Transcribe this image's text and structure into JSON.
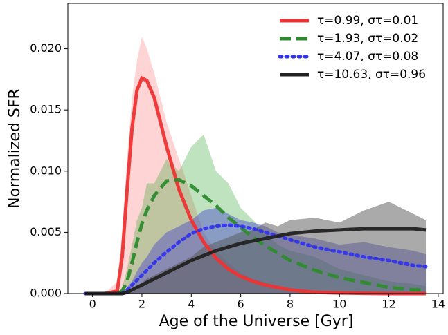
{
  "chart_data": {
    "type": "line",
    "xlabel": "Age of the Universe [Gyr]",
    "ylabel": "Normalized SFR",
    "xlim": [
      -1.0,
      14.2
    ],
    "ylim": [
      0,
      0.0237
    ],
    "xticks": [
      0,
      2,
      4,
      6,
      8,
      10,
      12,
      14
    ],
    "yticks": [
      {
        "value": 0,
        "label": "0.000"
      },
      {
        "value": 0.005,
        "label": "0.005"
      },
      {
        "value": 0.01,
        "label": "0.010"
      },
      {
        "value": 0.015,
        "label": "0.015"
      },
      {
        "value": 0.02,
        "label": "0.020"
      }
    ],
    "legend": "upper right",
    "x": [
      -0.3,
      0.5,
      1.0,
      1.2,
      1.4,
      1.6,
      1.8,
      2.0,
      2.2,
      2.5,
      3,
      3.5,
      4,
      4.5,
      5,
      5.5,
      6,
      6.5,
      7,
      7.5,
      8,
      9,
      10,
      11,
      12,
      13,
      13.5
    ],
    "fills": [
      {
        "color": "#ffb0b0",
        "opacity": 0.55,
        "values": [
          0,
          0,
          0.001,
          0.005,
          0.011,
          0.016,
          0.019,
          0.021,
          0.02,
          0.018,
          0.014,
          0.011,
          0.008,
          0.005,
          0.0035,
          0.0025,
          0.0017,
          0.0012,
          0.0009,
          0.0006,
          0.0004,
          0.0002,
          0.0001,
          0,
          0,
          0,
          0
        ]
      },
      {
        "color": "#2ca02c",
        "opacity": 0.3,
        "values": [
          0,
          0,
          0,
          0.0005,
          0.002,
          0.004,
          0.006,
          0.007,
          0.009,
          0.009,
          0.011,
          0.01,
          0.012,
          0.013,
          0.01,
          0.009,
          0.007,
          0.006,
          0.005,
          0.004,
          0.0035,
          0.003,
          0.002,
          0.0015,
          0.001,
          0.0008,
          0.0006
        ]
      },
      {
        "color": "#4848c8",
        "opacity": 0.45,
        "values": [
          0,
          0,
          0,
          0,
          0.0005,
          0.001,
          0.0018,
          0.0025,
          0.003,
          0.004,
          0.005,
          0.0055,
          0.006,
          0.0068,
          0.007,
          0.0065,
          0.006,
          0.0058,
          0.0055,
          0.005,
          0.0048,
          0.0045,
          0.004,
          0.0042,
          0.0038,
          0.0035,
          0.0032
        ]
      },
      {
        "color": "#555555",
        "opacity": 0.5,
        "values": [
          0,
          0,
          0,
          0,
          0,
          0.0003,
          0.0006,
          0.0009,
          0.0012,
          0.0015,
          0.002,
          0.0025,
          0.003,
          0.0038,
          0.0042,
          0.0046,
          0.005,
          0.0052,
          0.0058,
          0.0055,
          0.006,
          0.0062,
          0.0058,
          0.0068,
          0.0075,
          0.0065,
          0.006
        ]
      }
    ],
    "series": [
      {
        "name": "τ=0.99, στ=0.01",
        "color": "#ee3333",
        "dash": "solid",
        "values": [
          0,
          0,
          0.0002,
          0.003,
          0.0085,
          0.0135,
          0.0166,
          0.0176,
          0.0174,
          0.016,
          0.012,
          0.0085,
          0.006,
          0.0042,
          0.0029,
          0.002,
          0.0014,
          0.001,
          0.0007,
          0.0005,
          0.0003,
          0.0001,
          5e-05,
          2e-05,
          0,
          0,
          0
        ]
      },
      {
        "name": "τ=1.93, στ=0.02",
        "color": "#2e8b2e",
        "dash": "dashed",
        "values": [
          0,
          0,
          0,
          0.0002,
          0.001,
          0.0025,
          0.0042,
          0.0057,
          0.0068,
          0.008,
          0.0092,
          0.0093,
          0.0088,
          0.008,
          0.0072,
          0.0062,
          0.0054,
          0.0046,
          0.0039,
          0.0033,
          0.0027,
          0.0019,
          0.0013,
          0.0009,
          0.0005,
          0.0003,
          0.0003
        ]
      },
      {
        "name": "τ=4.07, στ=0.08",
        "color": "#3333ee",
        "dash": "dotted",
        "values": [
          0,
          0,
          0,
          0,
          0.0003,
          0.0007,
          0.0011,
          0.0015,
          0.0019,
          0.0025,
          0.0034,
          0.0042,
          0.0049,
          0.0053,
          0.0055,
          0.0056,
          0.0055,
          0.0053,
          0.005,
          0.0047,
          0.0044,
          0.0038,
          0.0034,
          0.003,
          0.0027,
          0.0023,
          0.0022
        ]
      },
      {
        "name": "τ=10.63, στ=0.96",
        "color": "#222222",
        "dash": "solid",
        "values": [
          0,
          0,
          0,
          0,
          0.0001,
          0.0003,
          0.0005,
          0.0007,
          0.0009,
          0.0012,
          0.0017,
          0.0022,
          0.0027,
          0.0031,
          0.0035,
          0.0038,
          0.0041,
          0.0043,
          0.0045,
          0.0047,
          0.0049,
          0.0051,
          0.0052,
          0.0053,
          0.0053,
          0.0053,
          0.0052
        ]
      }
    ]
  }
}
